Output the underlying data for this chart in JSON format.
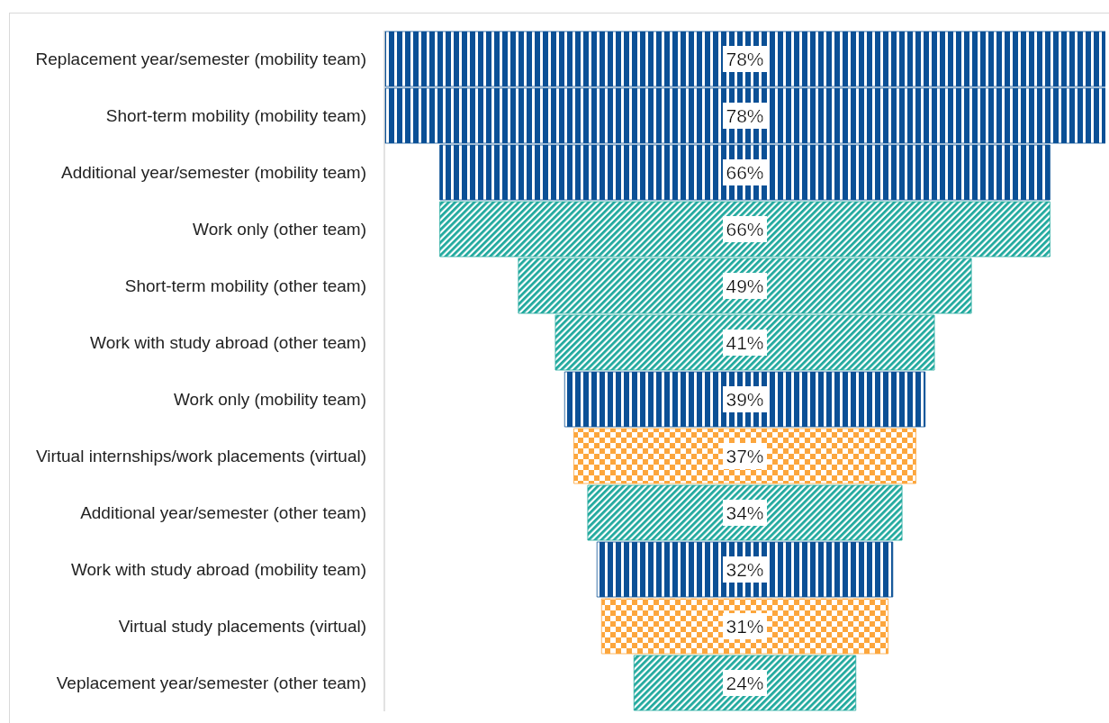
{
  "chart_data": {
    "type": "other",
    "categories": [
      "Replacement year/semester (mobility team)",
      "Short-term mobility (mobility team)",
      "Additional year/semester (mobility team)",
      "Work only (other team)",
      "Short-term mobility (other team)",
      "Work with study abroad (other team)",
      "Work only (mobility team)",
      "Virtual internships/work placements (virtual)",
      "Additional year/semester (other team)",
      "Work with study abroad (mobility team)",
      "Virtual study placements (virtual)",
      "Veplacement year/semester (other team)"
    ],
    "series": [
      {
        "color": "#0b5096",
        "values": [
          78,
          78,
          66,
          null,
          null,
          null,
          39,
          null,
          null,
          32,
          null,
          null
        ],
        "value_labels": [
          "78%",
          "78%",
          "66%",
          null,
          null,
          null,
          "39%",
          null,
          null,
          "32%",
          null,
          null
        ]
      },
      {
        "color": "#1fa89d",
        "values": [
          null,
          null,
          null,
          66,
          49,
          41,
          null,
          null,
          34,
          null,
          null,
          24
        ],
        "value_labels": [
          null,
          null,
          null,
          "66%",
          "49%",
          "41%",
          null,
          null,
          "34%",
          null,
          null,
          "24%"
        ]
      },
      {
        "color": "#fca63d",
        "values": [
          null,
          null,
          null,
          null,
          null,
          null,
          null,
          37,
          null,
          null,
          31,
          null
        ],
        "value_labels": [
          null,
          null,
          null,
          null,
          null,
          null,
          null,
          "37%",
          null,
          null,
          "31%",
          null
        ]
      }
    ]
  }
}
